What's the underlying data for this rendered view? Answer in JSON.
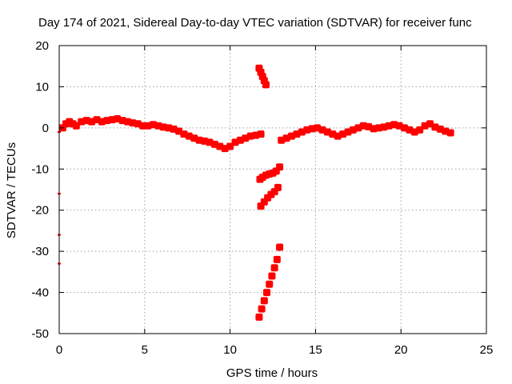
{
  "chart_data": {
    "type": "scatter",
    "title": "Day 174 of 2021, Sidereal Day-to-day VTEC variation (SDTVAR) for receiver func",
    "xlabel": "GPS time / hours",
    "ylabel": "SDTVAR / TECUs",
    "xlim": [
      0,
      25
    ],
    "ylim": [
      -50,
      20
    ],
    "xticks": [
      0,
      5,
      10,
      15,
      20,
      25
    ],
    "yticks": [
      20,
      10,
      0,
      -10,
      -20,
      -30,
      -40,
      -50
    ],
    "grid": true,
    "series_color": "#ff0000",
    "series": [
      {
        "name": "SDTVAR",
        "x": [
          0.0,
          0.2,
          0.4,
          0.6,
          0.8,
          1.0,
          1.3,
          1.6,
          1.9,
          2.2,
          2.5,
          2.8,
          3.1,
          3.4,
          3.7,
          4.0,
          4.3,
          4.6,
          4.9,
          5.2,
          5.5,
          5.8,
          6.1,
          6.4,
          6.7,
          7.0,
          7.3,
          7.6,
          7.9,
          8.2,
          8.5,
          8.8,
          9.1,
          9.4,
          9.7,
          10.0,
          10.3,
          10.6,
          10.9,
          11.2,
          11.5,
          11.8,
          11.7,
          11.8,
          11.9,
          12.0,
          12.1,
          11.75,
          11.9,
          12.1,
          12.3,
          12.5,
          12.7,
          12.9,
          11.8,
          12.0,
          12.2,
          12.4,
          12.6,
          12.8,
          11.7,
          11.85,
          12.0,
          12.15,
          12.3,
          12.45,
          12.6,
          12.75,
          12.9,
          13.0,
          13.3,
          13.6,
          13.9,
          14.2,
          14.5,
          14.8,
          15.1,
          15.4,
          15.7,
          16.0,
          16.3,
          16.6,
          16.9,
          17.2,
          17.5,
          17.8,
          18.1,
          18.4,
          18.7,
          19.0,
          19.3,
          19.6,
          19.9,
          20.2,
          20.5,
          20.8,
          21.1,
          21.4,
          21.7,
          22.0,
          22.3,
          22.6,
          22.9,
          0.0,
          0.0,
          0.0
        ],
        "y": [
          -1.0,
          0.0,
          1.0,
          1.5,
          1.0,
          0.5,
          1.5,
          1.8,
          1.5,
          2.0,
          1.5,
          1.8,
          2.0,
          2.2,
          1.8,
          1.5,
          1.2,
          1.0,
          0.5,
          0.5,
          0.8,
          0.5,
          0.2,
          0.0,
          -0.3,
          -0.8,
          -1.5,
          -2.0,
          -2.5,
          -3.0,
          -3.2,
          -3.5,
          -4.0,
          -4.5,
          -5.0,
          -4.5,
          -3.5,
          -3.0,
          -2.5,
          -2.0,
          -1.8,
          -1.5,
          14.5,
          13.5,
          12.5,
          11.5,
          10.5,
          -12.5,
          -12.0,
          -11.5,
          -11.2,
          -11.0,
          -10.5,
          -9.5,
          -19.0,
          -18.0,
          -17.0,
          -16.2,
          -15.5,
          -14.5,
          -46.0,
          -44.0,
          -42.0,
          -40.0,
          -38.0,
          -36.0,
          -34.0,
          -32.0,
          -29.0,
          -3.0,
          -2.5,
          -2.0,
          -1.5,
          -1.0,
          -0.5,
          -0.2,
          0.0,
          -0.5,
          -1.0,
          -1.5,
          -2.0,
          -1.5,
          -1.0,
          -0.5,
          0.0,
          0.5,
          0.3,
          -0.2,
          0.0,
          0.2,
          0.5,
          0.8,
          0.5,
          0.0,
          -0.5,
          -1.0,
          -0.5,
          0.5,
          1.0,
          0.2,
          -0.3,
          -0.8,
          -1.2,
          -16.0,
          -26.0,
          -33.0
        ]
      }
    ]
  }
}
